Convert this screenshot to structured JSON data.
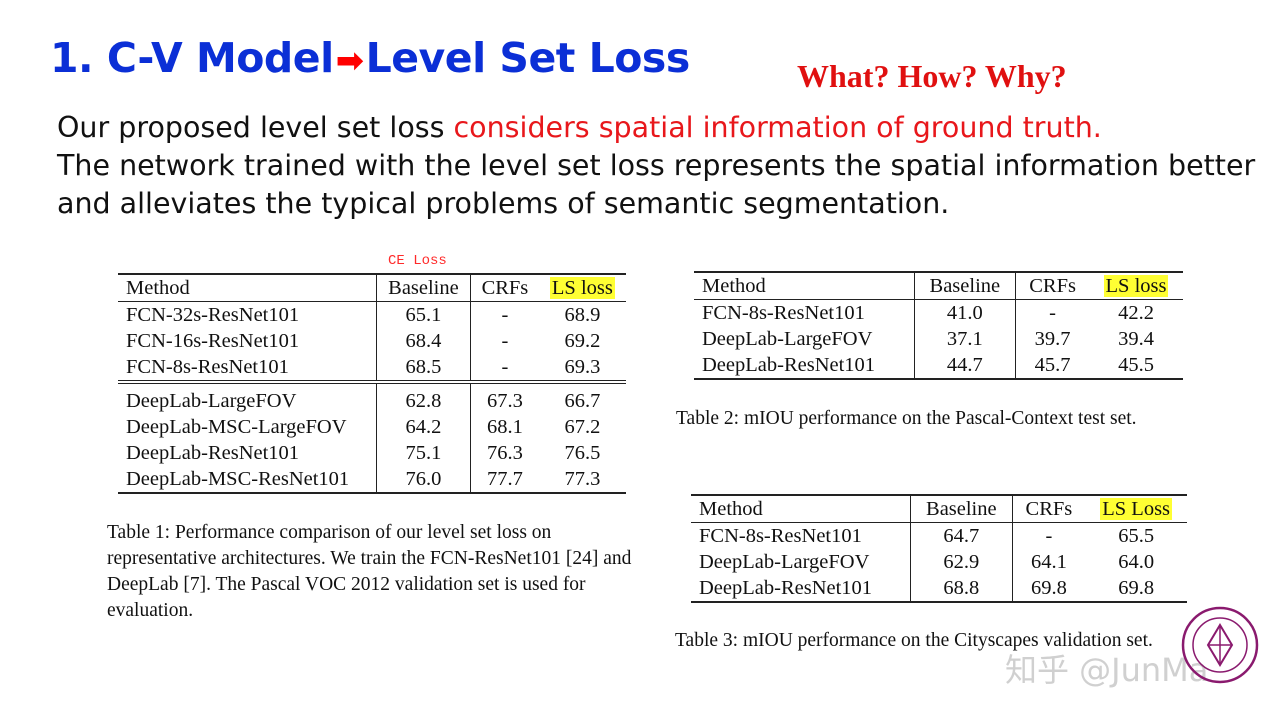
{
  "slide": {
    "title_part1": "1. C-V Model",
    "title_arrow": "➡",
    "title_part2": "Level Set Loss",
    "subtitle": "What? How? Why?",
    "intro_plain_1": "Our proposed level set loss ",
    "intro_highlight": "considers spatial information of ground truth.",
    "intro_plain_2": "The network trained with the level set loss represents the spatial information better and alleviates the typical problems of semantic segmentation.",
    "ce_note": "CE Loss"
  },
  "table1": {
    "headers": [
      "Method",
      "Baseline",
      "CRFs",
      "LS loss"
    ],
    "rows": [
      [
        "FCN-32s-ResNet101",
        "65.1",
        "-",
        "68.9"
      ],
      [
        "FCN-16s-ResNet101",
        "68.4",
        "-",
        "69.2"
      ],
      [
        "FCN-8s-ResNet101",
        "68.5",
        "-",
        "69.3"
      ],
      [
        "DeepLab-LargeFOV",
        "62.8",
        "67.3",
        "66.7"
      ],
      [
        "DeepLab-MSC-LargeFOV",
        "64.2",
        "68.1",
        "67.2"
      ],
      [
        "DeepLab-ResNet101",
        "75.1",
        "76.3",
        "76.5"
      ],
      [
        "DeepLab-MSC-ResNet101",
        "76.0",
        "77.7",
        "77.3"
      ]
    ],
    "caption": "Table 1: Performance comparison of our level set loss on representative architectures. We train the FCN-ResNet101 [24] and DeepLab [7]. The Pascal VOC 2012 validation set is used for evaluation."
  },
  "table2": {
    "headers": [
      "Method",
      "Baseline",
      "CRFs",
      "LS loss"
    ],
    "rows": [
      [
        "FCN-8s-ResNet101",
        "41.0",
        "-",
        "42.2"
      ],
      [
        "DeepLab-LargeFOV",
        "37.1",
        "39.7",
        "39.4"
      ],
      [
        "DeepLab-ResNet101",
        "44.7",
        "45.7",
        "45.5"
      ]
    ],
    "caption": "Table 2: mIOU performance on the Pascal-Context test set."
  },
  "table3": {
    "headers": [
      "Method",
      "Baseline",
      "CRFs",
      "LS Loss"
    ],
    "rows": [
      [
        "FCN-8s-ResNet101",
        "64.7",
        "-",
        "65.5"
      ],
      [
        "DeepLab-LargeFOV",
        "62.9",
        "64.1",
        "64.0"
      ],
      [
        "DeepLab-ResNet101",
        "68.8",
        "69.8",
        "69.8"
      ]
    ],
    "caption": "Table 3: mIOU performance on the Cityscapes validation set."
  },
  "watermark": "知乎 @JunMa",
  "colors": {
    "title": "#0b2fd6",
    "highlight": "#e8171b",
    "ls_header_bg": "#ffff33",
    "logo": "#8a1a6e"
  },
  "logo_icon": "university-seal-icon"
}
